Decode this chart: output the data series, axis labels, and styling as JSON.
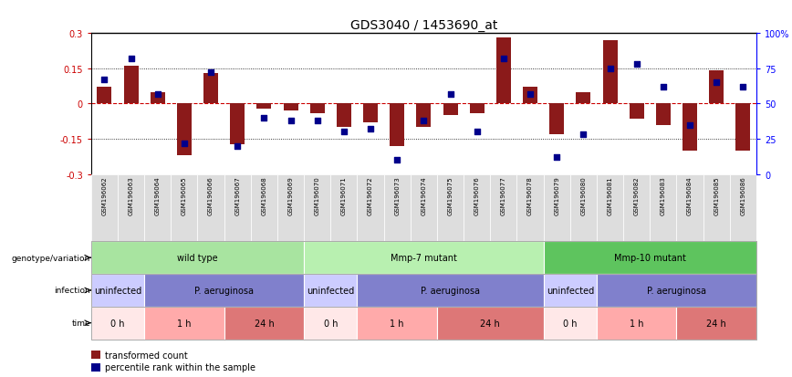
{
  "title": "GDS3040 / 1453690_at",
  "samples": [
    "GSM196062",
    "GSM196063",
    "GSM196064",
    "GSM196065",
    "GSM196066",
    "GSM196067",
    "GSM196068",
    "GSM196069",
    "GSM196070",
    "GSM196071",
    "GSM196072",
    "GSM196073",
    "GSM196074",
    "GSM196075",
    "GSM196076",
    "GSM196077",
    "GSM196078",
    "GSM196079",
    "GSM196080",
    "GSM196081",
    "GSM196082",
    "GSM196083",
    "GSM196084",
    "GSM196085",
    "GSM196086"
  ],
  "red_bars": [
    0.07,
    0.16,
    0.05,
    -0.22,
    0.13,
    -0.175,
    -0.02,
    -0.03,
    -0.04,
    -0.1,
    -0.08,
    -0.18,
    -0.1,
    -0.05,
    -0.04,
    0.28,
    0.07,
    -0.13,
    0.05,
    0.27,
    -0.065,
    -0.09,
    -0.2,
    0.14,
    -0.2
  ],
  "blue_pcts": [
    67,
    82,
    57,
    22,
    72,
    20,
    40,
    38,
    38,
    30,
    32,
    10,
    38,
    57,
    30,
    82,
    57,
    12,
    28,
    75,
    78,
    62,
    35,
    65,
    62
  ],
  "ylim_min": -0.3,
  "ylim_max": 0.3,
  "yticks": [
    -0.3,
    -0.15,
    0.0,
    0.15,
    0.3
  ],
  "ytick_labels_right": [
    "0",
    "25",
    "50",
    "75",
    "100%"
  ],
  "ytick_labels_left": [
    "-0.3",
    "-0.15",
    "0",
    "0.15",
    "0.3"
  ],
  "bar_color": "#8B1A1A",
  "dot_color": "#00008B",
  "zero_line_color": "#CC0000",
  "genotype_groups": [
    {
      "label": "wild type",
      "start": 0,
      "end": 8,
      "color": "#A8E4A0"
    },
    {
      "label": "Mmp-7 mutant",
      "start": 8,
      "end": 17,
      "color": "#B8F0B0"
    },
    {
      "label": "Mmp-10 mutant",
      "start": 17,
      "end": 25,
      "color": "#5EC45E"
    }
  ],
  "infection_groups": [
    {
      "label": "uninfected",
      "start": 0,
      "end": 2,
      "color": "#CCCCFF"
    },
    {
      "label": "P. aeruginosa",
      "start": 2,
      "end": 8,
      "color": "#8080CC"
    },
    {
      "label": "uninfected",
      "start": 8,
      "end": 10,
      "color": "#CCCCFF"
    },
    {
      "label": "P. aeruginosa",
      "start": 10,
      "end": 17,
      "color": "#8080CC"
    },
    {
      "label": "uninfected",
      "start": 17,
      "end": 19,
      "color": "#CCCCFF"
    },
    {
      "label": "P. aeruginosa",
      "start": 19,
      "end": 25,
      "color": "#8080CC"
    }
  ],
  "time_groups": [
    {
      "label": "0 h",
      "start": 0,
      "end": 2,
      "color": "#FFE8E8"
    },
    {
      "label": "1 h",
      "start": 2,
      "end": 5,
      "color": "#FFAAAA"
    },
    {
      "label": "24 h",
      "start": 5,
      "end": 8,
      "color": "#DD7777"
    },
    {
      "label": "0 h",
      "start": 8,
      "end": 10,
      "color": "#FFE8E8"
    },
    {
      "label": "1 h",
      "start": 10,
      "end": 13,
      "color": "#FFAAAA"
    },
    {
      "label": "24 h",
      "start": 13,
      "end": 17,
      "color": "#DD7777"
    },
    {
      "label": "0 h",
      "start": 17,
      "end": 19,
      "color": "#FFE8E8"
    },
    {
      "label": "1 h",
      "start": 19,
      "end": 22,
      "color": "#FFAAAA"
    },
    {
      "label": "24 h",
      "start": 22,
      "end": 25,
      "color": "#DD7777"
    }
  ],
  "row_labels": [
    "genotype/variation",
    "infection",
    "time"
  ],
  "legend_red": "transformed count",
  "legend_blue": "percentile rank within the sample",
  "bar_width": 0.55
}
